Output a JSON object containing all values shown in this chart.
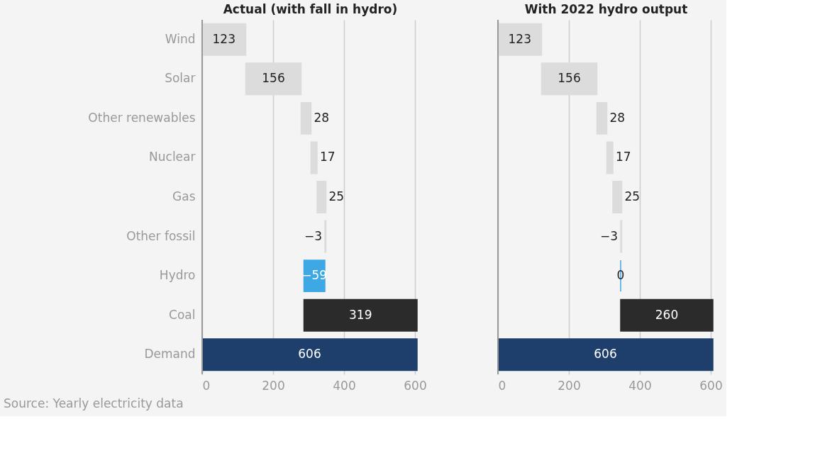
{
  "chart_data": [
    {
      "type": "bar",
      "orientation": "horizontal",
      "title": "Actual (with fall in hydro)",
      "categories": [
        "Wind",
        "Solar",
        "Other renewables",
        "Nuclear",
        "Gas",
        "Other fossil",
        "Hydro",
        "Coal",
        "Demand"
      ],
      "values": [
        123,
        156,
        28,
        17,
        25,
        -3,
        -59,
        319,
        606
      ],
      "base": [
        0,
        123,
        279,
        307,
        324,
        349,
        346,
        287,
        0
      ],
      "colors": [
        "#dcdcdc",
        "#dcdcdc",
        "#dcdcdc",
        "#dcdcdc",
        "#dcdcdc",
        "#dcdcdc",
        "#3ea8e5",
        "#2b2b2b",
        "#1e3f6b"
      ],
      "xlim": [
        0,
        610
      ],
      "xticks": [
        0,
        200,
        400,
        600
      ],
      "grid": "x",
      "data_labels": true,
      "annotations": [
        "Source: Yearly electricity data"
      ]
    },
    {
      "type": "bar",
      "orientation": "horizontal",
      "title": "With 2022 hydro output",
      "categories": [
        null,
        null,
        null,
        null,
        null,
        null,
        null,
        null,
        null
      ],
      "values": [
        123,
        156,
        28,
        17,
        25,
        -3,
        0,
        260,
        606
      ],
      "base": [
        0,
        123,
        279,
        307,
        324,
        349,
        346,
        346,
        0
      ],
      "colors": [
        "#dcdcdc",
        "#dcdcdc",
        "#dcdcdc",
        "#dcdcdc",
        "#dcdcdc",
        "#dcdcdc",
        "#3ea8e5",
        "#2b2b2b",
        "#1e3f6b"
      ],
      "xlim": [
        0,
        610
      ],
      "xticks": [
        0,
        200,
        400,
        600
      ],
      "grid": "x",
      "data_labels": true
    }
  ]
}
